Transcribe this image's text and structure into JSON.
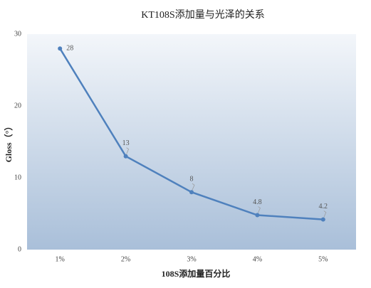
{
  "chart_data": {
    "type": "line",
    "title": "KT108S添加量与光泽的关系",
    "x_label": "108S添加量百分比",
    "y_label": "Gloss（°）",
    "categories": [
      "1%",
      "2%",
      "3%",
      "4%",
      "5%"
    ],
    "values": [
      28,
      13,
      8,
      4.8,
      4.2
    ],
    "color": "#4f81bd",
    "ylim": [
      0,
      30
    ],
    "yticks": [
      0,
      10,
      20,
      30
    ],
    "grid": false,
    "data_labels": true
  }
}
